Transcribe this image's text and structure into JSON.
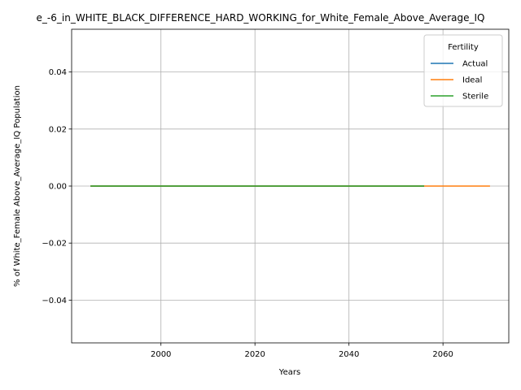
{
  "chart_data": {
    "type": "line",
    "title": "e_-6_in_WHITE_BLACK_DIFFERENCE_HARD_WORKING_for_White_Female_Above_Average_IQ",
    "xlabel": "Years",
    "ylabel": "% of White_Female Above_Average_IQ Population",
    "xlim": [
      1981,
      2074
    ],
    "ylim": [
      -0.055,
      0.055
    ],
    "xticks": [
      2000,
      2020,
      2040,
      2060
    ],
    "yticks": [
      -0.04,
      -0.02,
      0.0,
      0.02,
      0.04
    ],
    "ytick_labels": [
      "−0.04",
      "−0.02",
      "0.00",
      "0.02",
      "0.04"
    ],
    "grid": true,
    "legend": {
      "title": "Fertility",
      "placement": "top-right",
      "entries": [
        "Actual",
        "Ideal",
        "Sterile"
      ]
    },
    "series": [
      {
        "name": "Actual",
        "color": "#1f77b4",
        "x": [
          1985,
          2056
        ],
        "y": [
          0,
          0
        ]
      },
      {
        "name": "Ideal",
        "color": "#ff7f0e",
        "x": [
          1985,
          2070
        ],
        "y": [
          0,
          0
        ]
      },
      {
        "name": "Sterile",
        "color": "#2ca02c",
        "x": [
          1985,
          2056
        ],
        "y": [
          0,
          0
        ]
      }
    ]
  }
}
